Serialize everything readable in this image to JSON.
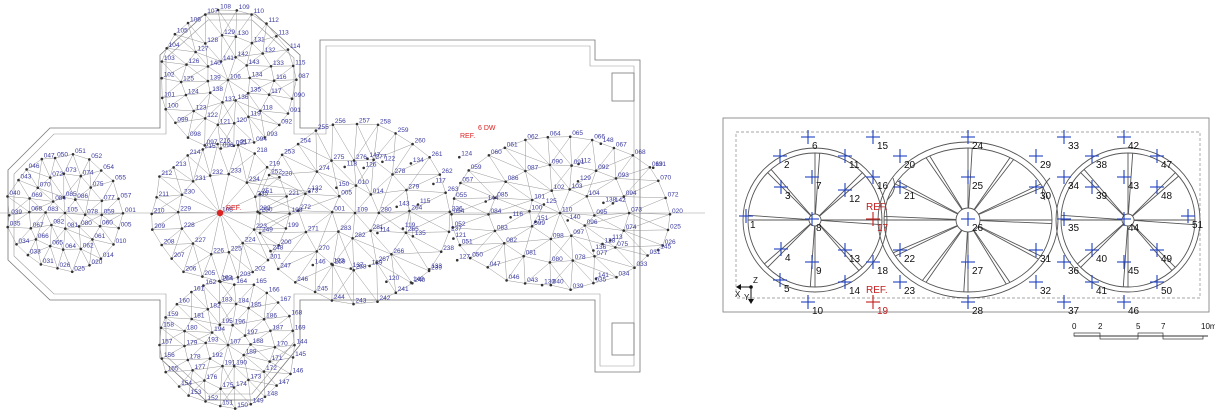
{
  "left_plan": {
    "title": "",
    "ref_label": "REF.",
    "ref_values": [
      "6",
      "DW"
    ],
    "point_labels": [
      "001",
      "005",
      "010",
      "014",
      "020",
      "025",
      "026",
      "031",
      "033",
      "034",
      "035",
      "039",
      "040",
      "043",
      "046",
      "047",
      "050",
      "051",
      "052",
      "054",
      "055",
      "057",
      "059",
      "060",
      "061",
      "062",
      "064",
      "065",
      "066",
      "067",
      "068",
      "069",
      "070",
      "072",
      "073",
      "074",
      "075",
      "077",
      "078",
      "080",
      "081",
      "082",
      "083",
      "084",
      "085",
      "086",
      "087",
      "090",
      "091",
      "092",
      "093",
      "094",
      "095",
      "096",
      "097",
      "098",
      "099",
      "100",
      "101",
      "102",
      "103",
      "104",
      "105",
      "106",
      "107",
      "108",
      "109",
      "110",
      "112",
      "113",
      "114",
      "115",
      "116",
      "117",
      "118",
      "119",
      "120",
      "121",
      "122",
      "123",
      "124",
      "125",
      "126",
      "127",
      "128",
      "129",
      "130",
      "131",
      "132",
      "133",
      "134",
      "135",
      "136",
      "137",
      "138",
      "139",
      "140",
      "141",
      "142",
      "143",
      "144",
      "145",
      "146",
      "147",
      "148",
      "149",
      "150",
      "151",
      "152",
      "153",
      "154",
      "155",
      "156",
      "157",
      "158",
      "159",
      "160",
      "161",
      "162",
      "163",
      "164",
      "165",
      "166",
      "167",
      "168",
      "169",
      "170",
      "171",
      "172",
      "173",
      "174",
      "175",
      "176",
      "177",
      "178",
      "179",
      "180",
      "181",
      "182",
      "183",
      "184",
      "185",
      "186",
      "187",
      "188",
      "189",
      "190",
      "191",
      "192",
      "193",
      "194",
      "195",
      "196",
      "197",
      "198",
      "199",
      "200",
      "201",
      "202",
      "203",
      "204",
      "205",
      "206",
      "207",
      "208",
      "209",
      "210",
      "211",
      "212",
      "213",
      "214",
      "215",
      "216",
      "217",
      "218",
      "219",
      "220",
      "221",
      "222",
      "223",
      "224",
      "225",
      "226",
      "227",
      "228",
      "229",
      "230",
      "231",
      "232",
      "233",
      "234",
      "235",
      "236",
      "237",
      "238",
      "239",
      "240",
      "241",
      "242",
      "243",
      "244",
      "245",
      "246",
      "247",
      "248",
      "249",
      "250",
      "251",
      "252",
      "253",
      "254",
      "255",
      "256",
      "257",
      "258",
      "259",
      "260",
      "261",
      "262",
      "263",
      "264",
      "265",
      "266",
      "267",
      "268",
      "269",
      "270",
      "271",
      "272",
      "273",
      "274",
      "275",
      "276",
      "277",
      "278",
      "279",
      "280",
      "281",
      "282",
      "283"
    ]
  },
  "right_plan": {
    "ref_label": "REF.",
    "points": [
      {
        "id": "1"
      },
      {
        "id": "2"
      },
      {
        "id": "3"
      },
      {
        "id": "4"
      },
      {
        "id": "5"
      },
      {
        "id": "6"
      },
      {
        "id": "7"
      },
      {
        "id": "8"
      },
      {
        "id": "9"
      },
      {
        "id": "10"
      },
      {
        "id": "11"
      },
      {
        "id": "12"
      },
      {
        "id": "13"
      },
      {
        "id": "14"
      },
      {
        "id": "15"
      },
      {
        "id": "16"
      },
      {
        "id": "17",
        "ref": true
      },
      {
        "id": "18"
      },
      {
        "id": "19",
        "ref": true
      },
      {
        "id": "20"
      },
      {
        "id": "21"
      },
      {
        "id": "22"
      },
      {
        "id": "23"
      },
      {
        "id": "24"
      },
      {
        "id": "25"
      },
      {
        "id": "26"
      },
      {
        "id": "27"
      },
      {
        "id": "28"
      },
      {
        "id": "29"
      },
      {
        "id": "30"
      },
      {
        "id": "31"
      },
      {
        "id": "32"
      },
      {
        "id": "33"
      },
      {
        "id": "34"
      },
      {
        "id": "35"
      },
      {
        "id": "36"
      },
      {
        "id": "37"
      },
      {
        "id": "38"
      },
      {
        "id": "39"
      },
      {
        "id": "40"
      },
      {
        "id": "41"
      },
      {
        "id": "42"
      },
      {
        "id": "43"
      },
      {
        "id": "44"
      },
      {
        "id": "45"
      },
      {
        "id": "46"
      },
      {
        "id": "47"
      },
      {
        "id": "48"
      },
      {
        "id": "49"
      },
      {
        "id": "50"
      },
      {
        "id": "51"
      }
    ],
    "axes": {
      "x": "X",
      "y": "Y",
      "z": "Z"
    },
    "scale_bar": {
      "ticks": [
        "0",
        "2",
        "5",
        "7",
        "10m"
      ]
    }
  }
}
